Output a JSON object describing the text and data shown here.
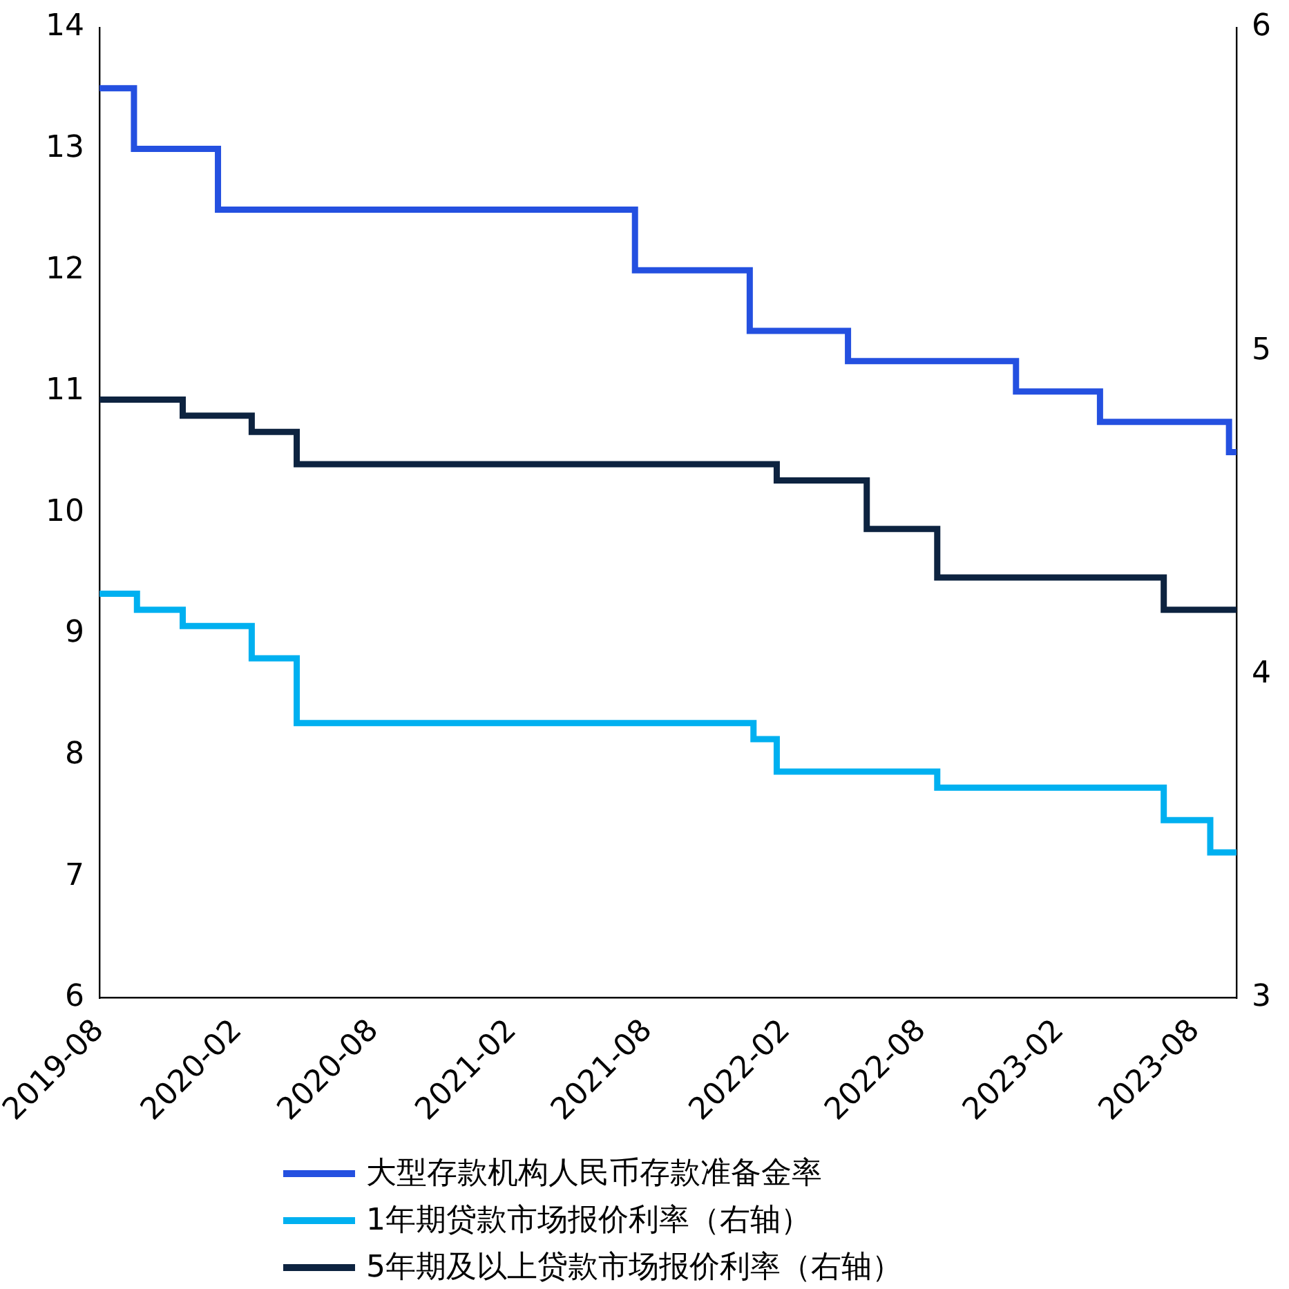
{
  "chart_data": {
    "type": "step",
    "xlim": [
      "2019-08-01",
      "2023-09-25"
    ],
    "xticks": [
      "2019-08",
      "2020-02",
      "2020-08",
      "2021-02",
      "2021-08",
      "2022-02",
      "2022-08",
      "2023-02",
      "2023-08"
    ],
    "ylim": [
      6,
      14
    ],
    "yticks": [
      6,
      7,
      8,
      9,
      10,
      11,
      12,
      13,
      14
    ],
    "y2lim": [
      3,
      6
    ],
    "y2ticks": [
      3,
      4,
      5,
      6
    ],
    "series": [
      {
        "name": "大型存款机构人民币存款准备金率",
        "color": "#2450e0",
        "x": [
          "2019-08-01",
          "2019-09-16",
          "2020-01-06",
          "2021-07-15",
          "2021-12-15",
          "2022-04-25",
          "2022-12-05",
          "2023-03-27",
          "2023-09-15",
          "2023-09-25"
        ],
        "values": [
          13.5,
          13.0,
          12.5,
          12.0,
          11.5,
          11.25,
          11.0,
          10.75,
          10.5,
          10.5
        ]
      },
      {
        "name": "1年期贷款市场报价利率（右轴）",
        "color": "#00b0f0",
        "axis": "y2",
        "x": [
          "2019-08-01",
          "2019-09-20",
          "2019-11-20",
          "2020-02-20",
          "2020-04-20",
          "2021-12-20",
          "2022-01-20",
          "2022-08-22",
          "2023-06-20",
          "2023-08-21",
          "2023-09-25"
        ],
        "values": [
          4.25,
          4.2,
          4.15,
          4.05,
          3.85,
          3.8,
          3.7,
          3.65,
          3.55,
          3.45,
          3.45
        ]
      },
      {
        "name": "5年期及以上贷款市场报价利率（右轴）",
        "color": "#0d2340",
        "axis": "y2",
        "x": [
          "2019-08-01",
          "2019-11-20",
          "2020-02-20",
          "2020-04-20",
          "2022-01-20",
          "2022-05-20",
          "2022-08-22",
          "2023-06-20",
          "2023-09-25"
        ],
        "values": [
          4.85,
          4.8,
          4.75,
          4.65,
          4.6,
          4.45,
          4.3,
          4.2,
          4.2
        ]
      }
    ],
    "legend": "bottom",
    "grid": false
  }
}
